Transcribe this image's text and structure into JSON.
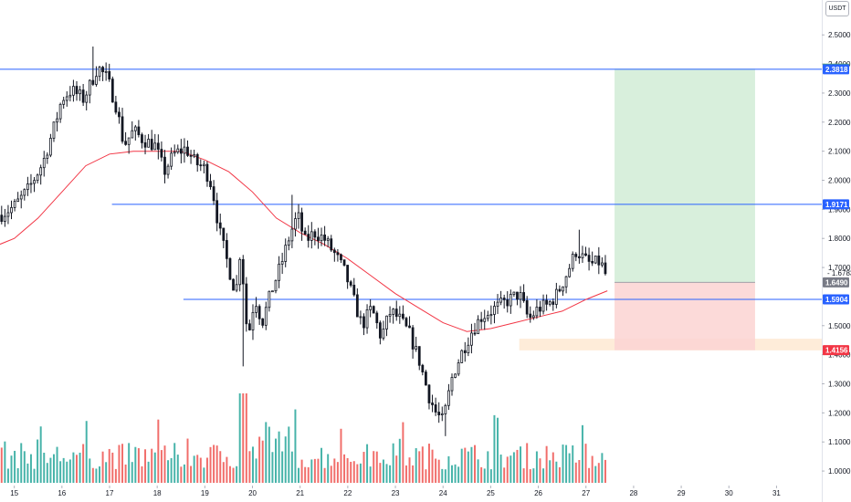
{
  "currency": "USDT",
  "chart_data": {
    "type": "candlestick",
    "x_ticks": [
      "15",
      "16",
      "17",
      "18",
      "19",
      "20",
      "21",
      "22",
      "23",
      "24",
      "25",
      "26",
      "27",
      "28",
      "29",
      "30",
      "31"
    ],
    "y_ticks": [
      "2.5000",
      "2.4000",
      "2.3000",
      "2.2000",
      "2.1000",
      "2.0000",
      "1.9000",
      "1.8000",
      "1.7000",
      "1.5000",
      "1.4000",
      "1.3000",
      "1.2000",
      "1.1000",
      "1.0000"
    ],
    "ylim": [
      0.95,
      2.62
    ],
    "xlim": [
      14.7,
      31.95
    ],
    "horizontal_lines": [
      {
        "value": 2.3818,
        "label": "2.3818",
        "x_start": 14.7
      },
      {
        "value": 1.9171,
        "label": "1.9171",
        "x_start": 17.05
      },
      {
        "value": 1.5904,
        "label": "1.5904",
        "x_start": 18.55
      }
    ],
    "price_labels": [
      {
        "value": 2.3838,
        "label": "2.3838",
        "color": "#4caf50"
      },
      {
        "value": 2.3818,
        "label": "2.3818",
        "color": "#2962ff"
      },
      {
        "value": 1.9171,
        "label": "1.9171",
        "color": "#2962ff"
      },
      {
        "value": 1.649,
        "label": "1.6490",
        "color": "#787b86"
      },
      {
        "value": 1.5904,
        "label": "1.5904",
        "color": "#2962ff"
      },
      {
        "value": 1.4156,
        "label": "1.4156",
        "color": "#f23645"
      }
    ],
    "current_price": {
      "value": 1.6783,
      "label": "1.6783",
      "countdown": "00:23"
    },
    "position": {
      "type": "long",
      "entry": 1.649,
      "target": 2.3838,
      "stop": 1.4156,
      "x_start": 27.6,
      "x_end": 30.55
    },
    "support_zone": {
      "low": 1.415,
      "high": 1.455,
      "x_start": 25.6
    },
    "moving_average": {
      "x": [
        14.7,
        15.0,
        15.5,
        16.0,
        16.5,
        17.0,
        17.5,
        18.0,
        18.5,
        19.0,
        19.5,
        20.0,
        20.5,
        21.0,
        21.5,
        22.0,
        22.5,
        23.0,
        23.5,
        24.0,
        24.5,
        25.0,
        25.5,
        26.0,
        26.5,
        27.0,
        27.45
      ],
      "y": [
        1.78,
        1.8,
        1.87,
        1.96,
        2.05,
        2.09,
        2.1,
        2.1,
        2.1,
        2.07,
        2.03,
        1.96,
        1.87,
        1.82,
        1.78,
        1.73,
        1.67,
        1.61,
        1.56,
        1.51,
        1.48,
        1.49,
        1.51,
        1.53,
        1.55,
        1.59,
        1.62
      ]
    },
    "price_path": {
      "x": [
        14.7,
        15.0,
        15.3,
        15.6,
        15.85,
        16.0,
        16.2,
        16.45,
        16.6,
        16.75,
        16.95,
        17.15,
        17.3,
        17.5,
        17.7,
        17.95,
        18.15,
        18.35,
        18.6,
        18.8,
        19.0,
        19.15,
        19.3,
        19.5,
        19.65,
        19.75,
        19.9,
        20.05,
        20.2,
        20.4,
        20.6,
        20.8,
        20.95,
        21.1,
        21.3,
        21.5,
        21.75,
        21.95,
        22.1,
        22.3,
        22.5,
        22.7,
        22.9,
        23.1,
        23.3,
        23.5,
        23.7,
        23.85,
        24.0,
        24.2,
        24.4,
        24.6,
        24.8,
        25.0,
        25.2,
        25.4,
        25.6,
        25.8,
        26.0,
        26.2,
        26.4,
        26.6,
        26.8,
        26.95,
        27.1,
        27.3,
        27.45
      ],
      "y": [
        1.88,
        1.91,
        1.97,
        2.06,
        2.19,
        2.28,
        2.31,
        2.28,
        2.33,
        2.39,
        2.35,
        2.25,
        2.12,
        2.17,
        2.14,
        2.12,
        2.03,
        2.09,
        2.11,
        2.06,
        2.04,
        1.98,
        1.83,
        1.7,
        1.61,
        1.77,
        1.45,
        1.6,
        1.51,
        1.62,
        1.71,
        1.82,
        1.88,
        1.79,
        1.82,
        1.8,
        1.74,
        1.68,
        1.6,
        1.5,
        1.56,
        1.46,
        1.55,
        1.52,
        1.47,
        1.38,
        1.26,
        1.2,
        1.17,
        1.33,
        1.41,
        1.48,
        1.53,
        1.55,
        1.57,
        1.59,
        1.61,
        1.52,
        1.56,
        1.57,
        1.61,
        1.68,
        1.76,
        1.73,
        1.71,
        1.72,
        1.66
      ]
    },
    "volume_ylim": [
      0,
      0.3
    ],
    "grid": false,
    "colors": {
      "up": "#26a69a",
      "down": "#ef5350",
      "candle": "#131722",
      "line": "#2962ff",
      "ma": "#f23645",
      "profit": "#d1ecd6",
      "loss": "#fcd3d2",
      "zone": "#fde6cc"
    }
  }
}
